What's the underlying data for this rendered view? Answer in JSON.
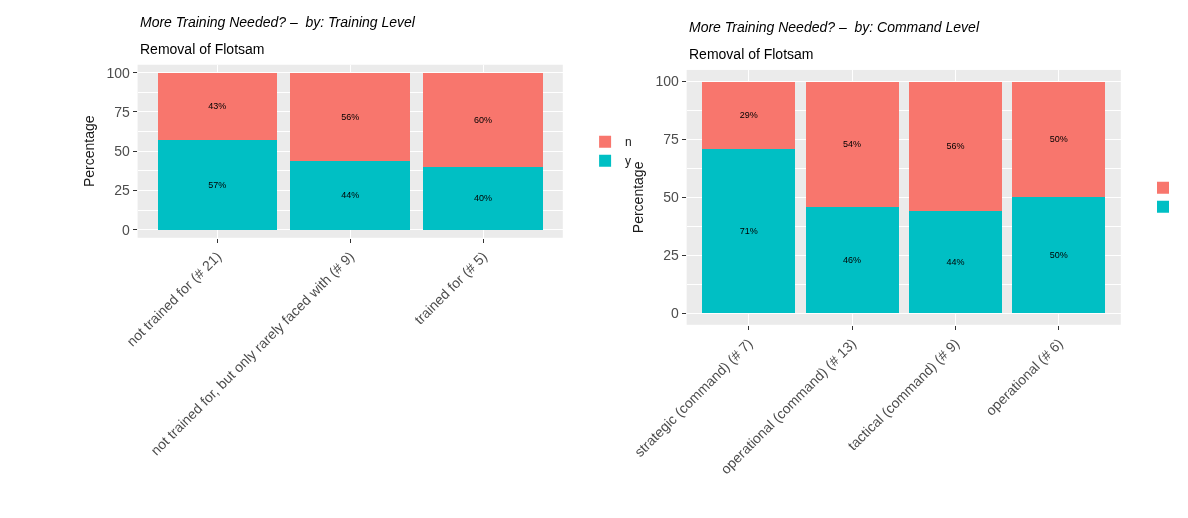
{
  "chart_data": [
    {
      "type": "bar",
      "title": "More Training Needed? –  by: Training Level",
      "subtitle": "Removal of Flotsam",
      "ylabel": "Percentage",
      "stacked": true,
      "categories": [
        "not trained for (# 21)",
        "not trained for, but only rarely faced with (# 9)",
        "trained for (# 5)"
      ],
      "series": [
        {
          "name": "y",
          "color": "#00bfc4",
          "values": [
            57,
            44,
            40
          ],
          "value_labels": [
            "57%",
            "44%",
            "40%"
          ]
        },
        {
          "name": "n",
          "color": "#f8766d",
          "values": [
            43,
            56,
            60
          ],
          "value_labels": [
            "43%",
            "56%",
            "60%"
          ]
        }
      ],
      "ylim": [
        -5,
        105
      ],
      "yticks": [
        0,
        25,
        50,
        75,
        100
      ],
      "grid": true,
      "legend": "right"
    },
    {
      "type": "bar",
      "title": "More Training Needed? –  by: Command Level",
      "subtitle": "Removal of Flotsam",
      "ylabel": "Percentage",
      "stacked": true,
      "categories": [
        "strategic (command) (# 7)",
        "operational (command) (# 13)",
        "tactical (command) (# 9)",
        "operational (# 6)"
      ],
      "series": [
        {
          "color": "#00bfc4",
          "values": [
            71,
            46,
            44,
            50
          ],
          "value_labels": [
            "71%",
            "46%",
            "44%",
            "50%"
          ]
        },
        {
          "color": "#f8766d",
          "values": [
            29,
            54,
            56,
            50
          ],
          "value_labels": [
            "29%",
            "54%",
            "56%",
            "50%"
          ]
        }
      ],
      "ylim": [
        -5,
        105
      ],
      "yticks": [
        0,
        25,
        50,
        75,
        100
      ],
      "grid": true,
      "legend": "right"
    }
  ]
}
